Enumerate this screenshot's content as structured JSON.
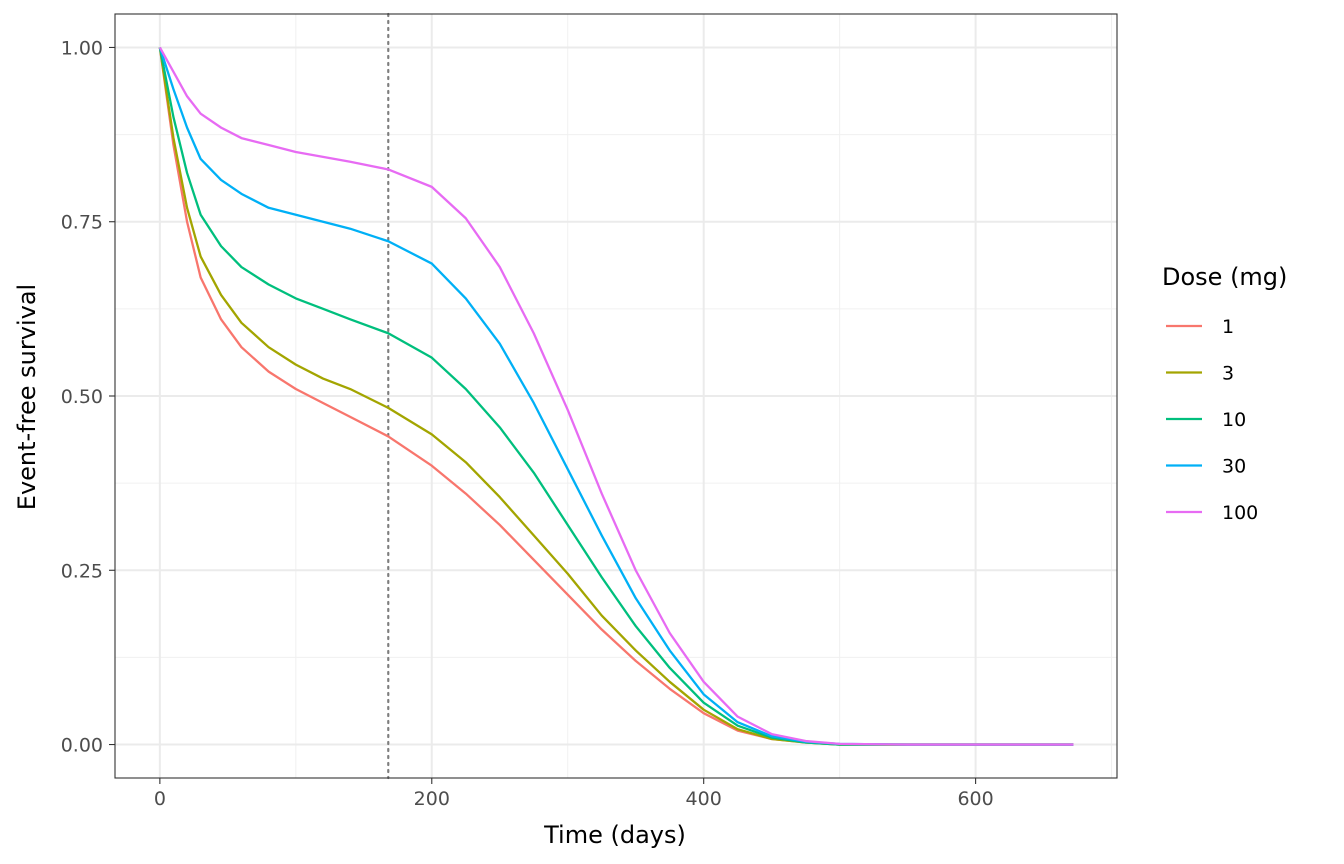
{
  "chart_data": {
    "type": "line",
    "xlabel": "Time (days)",
    "ylabel": "Event-free survival",
    "xlim": [
      -33,
      704
    ],
    "ylim": [
      -0.048,
      1.048
    ],
    "x_ticks": [
      0,
      200,
      400,
      600
    ],
    "x_tick_labels": [
      "0",
      "200",
      "400",
      "600"
    ],
    "y_ticks": [
      0,
      0.25,
      0.5,
      0.75,
      1
    ],
    "y_tick_labels": [
      "0.00",
      "0.25",
      "0.50",
      "0.75",
      "1.00"
    ],
    "grid": true,
    "reference_line": {
      "axis": "x",
      "value": 168,
      "style": "dotted",
      "color": "#7f7f7f"
    },
    "legend": {
      "title": "Dose (mg)",
      "position": "right"
    },
    "series": [
      {
        "name": "1",
        "color": "#F8766D",
        "points": [
          [
            0,
            1.0
          ],
          [
            10,
            0.86
          ],
          [
            20,
            0.75
          ],
          [
            30,
            0.67
          ],
          [
            45,
            0.61
          ],
          [
            60,
            0.57
          ],
          [
            80,
            0.535
          ],
          [
            100,
            0.51
          ],
          [
            120,
            0.49
          ],
          [
            140,
            0.47
          ],
          [
            168,
            0.442
          ],
          [
            200,
            0.4
          ],
          [
            225,
            0.36
          ],
          [
            250,
            0.315
          ],
          [
            275,
            0.265
          ],
          [
            300,
            0.215
          ],
          [
            325,
            0.165
          ],
          [
            350,
            0.12
          ],
          [
            375,
            0.08
          ],
          [
            400,
            0.045
          ],
          [
            425,
            0.02
          ],
          [
            450,
            0.008
          ],
          [
            475,
            0.003
          ],
          [
            500,
            0.0
          ],
          [
            550,
            0.0
          ],
          [
            600,
            0.0
          ],
          [
            672,
            0.0
          ]
        ]
      },
      {
        "name": "3",
        "color": "#A3A500",
        "points": [
          [
            0,
            1.0
          ],
          [
            10,
            0.87
          ],
          [
            20,
            0.77
          ],
          [
            30,
            0.7
          ],
          [
            45,
            0.645
          ],
          [
            60,
            0.605
          ],
          [
            80,
            0.57
          ],
          [
            100,
            0.545
          ],
          [
            120,
            0.525
          ],
          [
            140,
            0.51
          ],
          [
            168,
            0.483
          ],
          [
            200,
            0.445
          ],
          [
            225,
            0.405
          ],
          [
            250,
            0.355
          ],
          [
            275,
            0.3
          ],
          [
            300,
            0.245
          ],
          [
            325,
            0.185
          ],
          [
            350,
            0.135
          ],
          [
            375,
            0.09
          ],
          [
            400,
            0.05
          ],
          [
            425,
            0.022
          ],
          [
            450,
            0.008
          ],
          [
            475,
            0.003
          ],
          [
            500,
            0.0
          ],
          [
            550,
            0.0
          ],
          [
            600,
            0.0
          ],
          [
            672,
            0.0
          ]
        ]
      },
      {
        "name": "10",
        "color": "#00BF7D",
        "points": [
          [
            0,
            1.0
          ],
          [
            10,
            0.9
          ],
          [
            20,
            0.82
          ],
          [
            30,
            0.76
          ],
          [
            45,
            0.715
          ],
          [
            60,
            0.685
          ],
          [
            80,
            0.66
          ],
          [
            100,
            0.64
          ],
          [
            120,
            0.625
          ],
          [
            140,
            0.61
          ],
          [
            168,
            0.59
          ],
          [
            200,
            0.555
          ],
          [
            225,
            0.51
          ],
          [
            250,
            0.455
          ],
          [
            275,
            0.39
          ],
          [
            300,
            0.315
          ],
          [
            325,
            0.24
          ],
          [
            350,
            0.17
          ],
          [
            375,
            0.11
          ],
          [
            400,
            0.06
          ],
          [
            425,
            0.027
          ],
          [
            450,
            0.01
          ],
          [
            475,
            0.003
          ],
          [
            500,
            0.0
          ],
          [
            550,
            0.0
          ],
          [
            600,
            0.0
          ],
          [
            672,
            0.0
          ]
        ]
      },
      {
        "name": "30",
        "color": "#00B0F6",
        "points": [
          [
            0,
            1.0
          ],
          [
            10,
            0.94
          ],
          [
            20,
            0.885
          ],
          [
            30,
            0.84
          ],
          [
            45,
            0.81
          ],
          [
            60,
            0.79
          ],
          [
            80,
            0.77
          ],
          [
            100,
            0.76
          ],
          [
            120,
            0.75
          ],
          [
            140,
            0.74
          ],
          [
            168,
            0.722
          ],
          [
            200,
            0.69
          ],
          [
            225,
            0.64
          ],
          [
            250,
            0.575
          ],
          [
            275,
            0.49
          ],
          [
            300,
            0.395
          ],
          [
            325,
            0.3
          ],
          [
            350,
            0.21
          ],
          [
            375,
            0.135
          ],
          [
            400,
            0.072
          ],
          [
            425,
            0.032
          ],
          [
            450,
            0.012
          ],
          [
            475,
            0.004
          ],
          [
            500,
            0.001
          ],
          [
            550,
            0.0
          ],
          [
            600,
            0.0
          ],
          [
            672,
            0.0
          ]
        ]
      },
      {
        "name": "100",
        "color": "#E76BF3",
        "points": [
          [
            0,
            1.0
          ],
          [
            10,
            0.965
          ],
          [
            20,
            0.93
          ],
          [
            30,
            0.905
          ],
          [
            45,
            0.885
          ],
          [
            60,
            0.87
          ],
          [
            80,
            0.86
          ],
          [
            100,
            0.85
          ],
          [
            120,
            0.843
          ],
          [
            140,
            0.836
          ],
          [
            168,
            0.825
          ],
          [
            200,
            0.8
          ],
          [
            225,
            0.755
          ],
          [
            250,
            0.685
          ],
          [
            275,
            0.59
          ],
          [
            300,
            0.48
          ],
          [
            325,
            0.36
          ],
          [
            350,
            0.25
          ],
          [
            375,
            0.16
          ],
          [
            400,
            0.09
          ],
          [
            425,
            0.04
          ],
          [
            450,
            0.015
          ],
          [
            475,
            0.005
          ],
          [
            500,
            0.001
          ],
          [
            550,
            0.0
          ],
          [
            600,
            0.0
          ],
          [
            672,
            0.0
          ]
        ]
      }
    ]
  }
}
